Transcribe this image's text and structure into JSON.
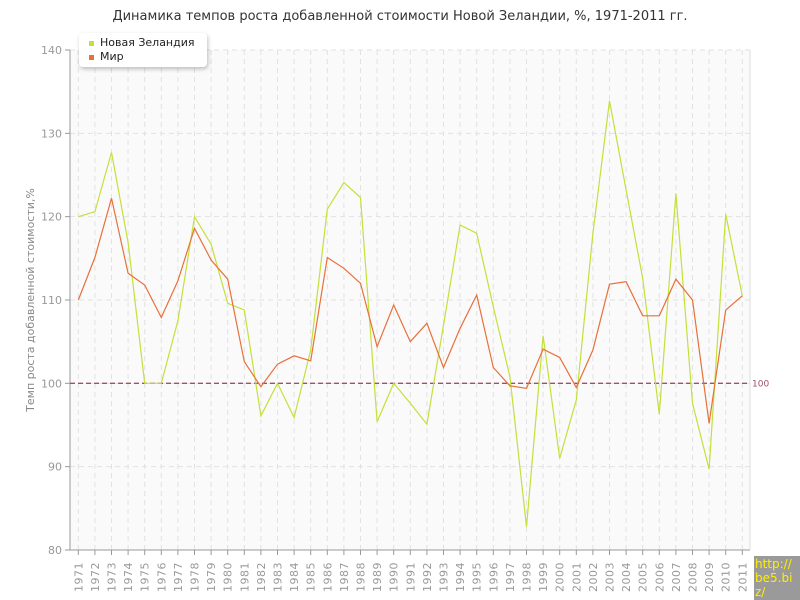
{
  "chart_data": {
    "type": "line",
    "title": "Динамика темпов роста добавленной стоимости Новой Зеландии, %, 1971-2011 гг.",
    "xlabel": "",
    "ylabel": "Темп роста добавленной стоимости,%",
    "ylim": [
      80,
      140
    ],
    "yticks": [
      80,
      90,
      100,
      110,
      120,
      130,
      140
    ],
    "grid": true,
    "legend_position": "top-left",
    "reference_line": {
      "value": 100,
      "label": "100",
      "color": "#a0506a"
    },
    "x": [
      "1971",
      "1972",
      "1973",
      "1974",
      "1975",
      "1976",
      "1977",
      "1978",
      "1979",
      "1980",
      "1981",
      "1982",
      "1983",
      "1984",
      "1985",
      "1986",
      "1987",
      "1988",
      "1989",
      "1990",
      "1991",
      "1992",
      "1993",
      "1994",
      "1995",
      "1996",
      "1997",
      "1998",
      "1999",
      "2000",
      "2001",
      "2002",
      "2003",
      "2004",
      "2005",
      "2006",
      "2007",
      "2008",
      "2009",
      "2010",
      "2011"
    ],
    "series": [
      {
        "name": "Новая Зеландия",
        "color": "#c4e03a",
        "values": [
          120,
          120.6,
          127.7,
          116.9,
          100,
          100,
          107.5,
          120,
          116.7,
          109.6,
          108.8,
          96.1,
          100,
          95.9,
          104,
          120.9,
          124.1,
          122.3,
          95.4,
          100,
          97.6,
          95.1,
          107,
          119,
          118,
          109.2,
          100.8,
          82.8,
          105.7,
          91,
          98,
          118,
          133.9,
          123.2,
          112.6,
          96.3,
          122.8,
          97.6,
          89.7,
          120.3,
          110.5
        ]
      },
      {
        "name": "Мир",
        "color": "#e8703a",
        "values": [
          110,
          115.1,
          122.2,
          113.2,
          111.8,
          107.9,
          112.3,
          118.6,
          114.8,
          112.5,
          102.6,
          99.6,
          102.3,
          103.3,
          102.7,
          115.1,
          113.8,
          112,
          104.4,
          109.4,
          105,
          107.2,
          101.9,
          106.6,
          110.6,
          101.9,
          99.7,
          99.4,
          104.1,
          103.1,
          99.5,
          104,
          111.9,
          112.2,
          108.1,
          108.1,
          112.5,
          110,
          95.2,
          108.8,
          110.5
        ]
      }
    ]
  },
  "watermark": "http://be5.biz/"
}
